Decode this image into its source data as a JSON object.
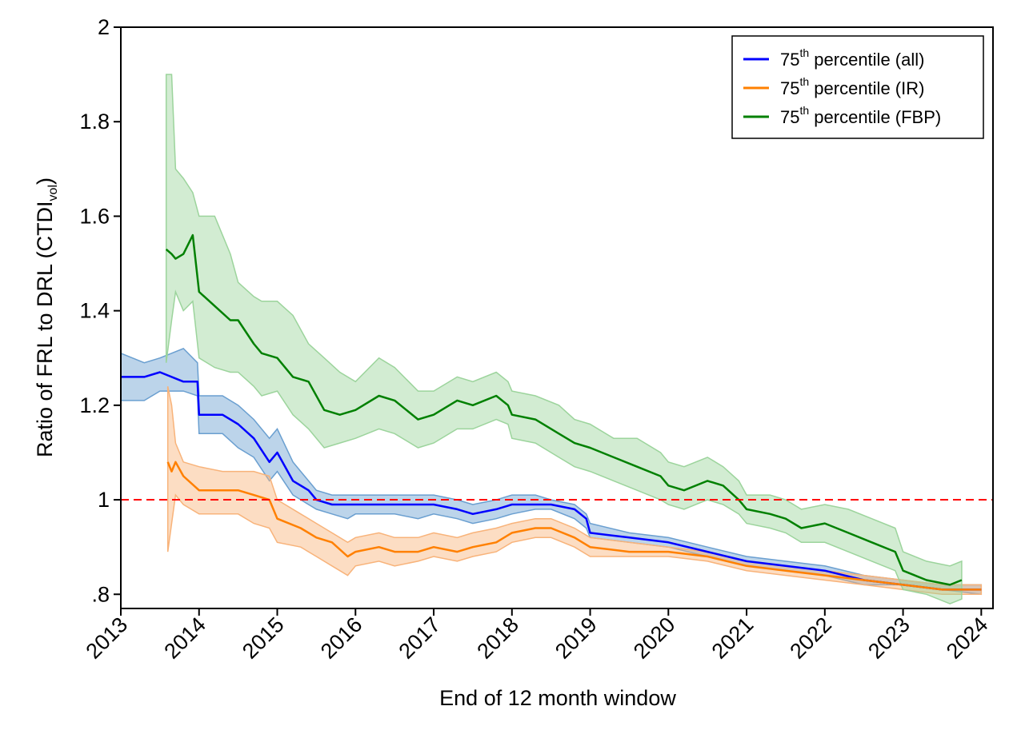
{
  "chart_data": {
    "type": "line",
    "title": "",
    "xlabel": "End of 12 month window",
    "ylabel": "Ratio of FRL to DRL (CTDI",
    "ylabel_sub": "vol",
    "ylabel_close": ")",
    "xlim": [
      2013,
      2024.15
    ],
    "ylim": [
      0.77,
      2.0
    ],
    "x_ticks": [
      2013,
      2014,
      2015,
      2016,
      2017,
      2018,
      2019,
      2020,
      2021,
      2022,
      2023,
      2024
    ],
    "x_tick_labels": [
      "2013",
      "2014",
      "2015",
      "2016",
      "2017",
      "2018",
      "2019",
      "2020",
      "2021",
      "2022",
      "2023",
      "2024"
    ],
    "y_ticks": [
      0.8,
      1.0,
      1.2,
      1.4,
      1.6,
      1.8,
      2.0
    ],
    "y_tick_labels": [
      ".8",
      "1",
      "1.2",
      "1.4",
      "1.6",
      "1.8",
      "2"
    ],
    "reference_line": {
      "y": 1.0,
      "color": "#ff0000",
      "style": "dashed"
    },
    "legend_position": "top-right",
    "legend_entries": [
      {
        "prefix": "75",
        "sup": "th",
        "suffix": " percentile (all)",
        "color": "#0000ff"
      },
      {
        "prefix": "75",
        "sup": "th",
        "suffix": " percentile (IR)",
        "color": "#ff8000"
      },
      {
        "prefix": "75",
        "sup": "th",
        "suffix": " percentile (FBP)",
        "color": "#008000"
      }
    ],
    "series": [
      {
        "name": "75th percentile (all)",
        "color": "#0000ff",
        "band_color": "#6a9fd0",
        "x": [
          2013.0,
          2013.3,
          2013.5,
          2013.8,
          2013.98,
          2014.0,
          2014.3,
          2014.5,
          2014.7,
          2014.9,
          2015.0,
          2015.2,
          2015.4,
          2015.5,
          2015.7,
          2015.9,
          2016.0,
          2016.3,
          2016.5,
          2016.8,
          2017.0,
          2017.3,
          2017.5,
          2017.8,
          2018.0,
          2018.3,
          2018.5,
          2018.8,
          2018.95,
          2019.0,
          2019.5,
          2020.0,
          2020.5,
          2021.0,
          2021.5,
          2022.0,
          2022.5,
          2023.0,
          2023.5,
          2024.0
        ],
        "values": [
          1.26,
          1.26,
          1.27,
          1.25,
          1.25,
          1.18,
          1.18,
          1.16,
          1.13,
          1.08,
          1.1,
          1.04,
          1.02,
          1.0,
          0.99,
          0.99,
          0.99,
          0.99,
          0.99,
          0.99,
          0.99,
          0.98,
          0.97,
          0.98,
          0.99,
          0.99,
          0.99,
          0.98,
          0.96,
          0.93,
          0.92,
          0.91,
          0.89,
          0.87,
          0.86,
          0.85,
          0.83,
          0.82,
          0.81,
          0.81
        ],
        "lower": [
          1.21,
          1.21,
          1.23,
          1.23,
          1.22,
          1.14,
          1.14,
          1.11,
          1.09,
          1.04,
          1.06,
          1.01,
          0.99,
          0.98,
          0.97,
          0.96,
          0.97,
          0.97,
          0.97,
          0.96,
          0.97,
          0.96,
          0.95,
          0.96,
          0.97,
          0.98,
          0.98,
          0.96,
          0.94,
          0.92,
          0.91,
          0.9,
          0.88,
          0.86,
          0.85,
          0.84,
          0.82,
          0.82,
          0.81,
          0.8
        ],
        "upper": [
          1.31,
          1.29,
          1.3,
          1.32,
          1.29,
          1.22,
          1.22,
          1.2,
          1.17,
          1.13,
          1.15,
          1.08,
          1.04,
          1.02,
          1.01,
          1.01,
          1.01,
          1.01,
          1.01,
          1.01,
          1.01,
          1.0,
          0.99,
          1.0,
          1.01,
          1.01,
          1.0,
          0.99,
          0.97,
          0.95,
          0.93,
          0.92,
          0.9,
          0.88,
          0.87,
          0.86,
          0.84,
          0.83,
          0.82,
          0.82
        ]
      },
      {
        "name": "75th percentile (IR)",
        "color": "#ff8000",
        "band_color": "#f8b37a",
        "x": [
          2013.6,
          2013.65,
          2013.7,
          2013.8,
          2014.0,
          2014.3,
          2014.5,
          2014.7,
          2014.9,
          2015.0,
          2015.3,
          2015.5,
          2015.7,
          2015.9,
          2016.0,
          2016.3,
          2016.5,
          2016.8,
          2017.0,
          2017.3,
          2017.5,
          2017.8,
          2018.0,
          2018.3,
          2018.5,
          2018.8,
          2019.0,
          2019.5,
          2020.0,
          2020.5,
          2021.0,
          2021.5,
          2022.0,
          2022.5,
          2023.0,
          2023.5,
          2024.0
        ],
        "values": [
          1.08,
          1.06,
          1.08,
          1.05,
          1.02,
          1.02,
          1.02,
          1.01,
          1.0,
          0.96,
          0.94,
          0.92,
          0.91,
          0.88,
          0.89,
          0.9,
          0.89,
          0.89,
          0.9,
          0.89,
          0.9,
          0.91,
          0.93,
          0.94,
          0.94,
          0.92,
          0.9,
          0.89,
          0.89,
          0.88,
          0.86,
          0.85,
          0.84,
          0.83,
          0.82,
          0.81,
          0.81
        ],
        "lower": [
          0.89,
          0.95,
          1.01,
          0.99,
          0.97,
          0.97,
          0.97,
          0.95,
          0.94,
          0.91,
          0.9,
          0.88,
          0.86,
          0.84,
          0.86,
          0.87,
          0.86,
          0.87,
          0.88,
          0.87,
          0.88,
          0.89,
          0.91,
          0.92,
          0.92,
          0.9,
          0.88,
          0.88,
          0.88,
          0.87,
          0.85,
          0.84,
          0.83,
          0.82,
          0.81,
          0.8,
          0.8
        ],
        "upper": [
          1.24,
          1.2,
          1.12,
          1.08,
          1.07,
          1.06,
          1.06,
          1.06,
          1.05,
          1.0,
          0.97,
          0.95,
          0.93,
          0.91,
          0.92,
          0.93,
          0.92,
          0.92,
          0.93,
          0.92,
          0.93,
          0.94,
          0.95,
          0.96,
          0.96,
          0.94,
          0.92,
          0.91,
          0.9,
          0.89,
          0.87,
          0.86,
          0.85,
          0.84,
          0.83,
          0.82,
          0.82
        ]
      },
      {
        "name": "75th percentile (FBP)",
        "color": "#008000",
        "band_color": "#9cd49c",
        "x": [
          2013.58,
          2013.65,
          2013.7,
          2013.8,
          2013.92,
          2014.0,
          2014.2,
          2014.4,
          2014.5,
          2014.7,
          2014.8,
          2015.0,
          2015.2,
          2015.4,
          2015.6,
          2015.8,
          2016.0,
          2016.3,
          2016.5,
          2016.8,
          2017.0,
          2017.3,
          2017.5,
          2017.8,
          2017.95,
          2018.0,
          2018.3,
          2018.6,
          2018.8,
          2019.0,
          2019.3,
          2019.6,
          2019.9,
          2020.0,
          2020.2,
          2020.5,
          2020.7,
          2020.9,
          2021.0,
          2021.3,
          2021.5,
          2021.7,
          2022.0,
          2022.3,
          2022.6,
          2022.9,
          2023.0,
          2023.3,
          2023.6,
          2023.75
        ],
        "values": [
          1.53,
          1.52,
          1.51,
          1.52,
          1.56,
          1.44,
          1.41,
          1.38,
          1.38,
          1.33,
          1.31,
          1.3,
          1.26,
          1.25,
          1.19,
          1.18,
          1.19,
          1.22,
          1.21,
          1.17,
          1.18,
          1.21,
          1.2,
          1.22,
          1.2,
          1.18,
          1.17,
          1.14,
          1.12,
          1.11,
          1.09,
          1.07,
          1.05,
          1.03,
          1.02,
          1.04,
          1.03,
          1.0,
          0.98,
          0.97,
          0.96,
          0.94,
          0.95,
          0.93,
          0.91,
          0.89,
          0.85,
          0.83,
          0.82,
          0.83
        ],
        "lower": [
          1.29,
          1.38,
          1.44,
          1.4,
          1.42,
          1.3,
          1.28,
          1.27,
          1.27,
          1.24,
          1.22,
          1.23,
          1.18,
          1.15,
          1.11,
          1.12,
          1.13,
          1.15,
          1.14,
          1.11,
          1.12,
          1.15,
          1.15,
          1.17,
          1.16,
          1.13,
          1.12,
          1.09,
          1.07,
          1.06,
          1.04,
          1.02,
          1.0,
          0.99,
          0.98,
          1.0,
          0.99,
          0.97,
          0.95,
          0.94,
          0.93,
          0.91,
          0.91,
          0.89,
          0.87,
          0.85,
          0.81,
          0.8,
          0.78,
          0.79
        ],
        "upper": [
          1.9,
          1.9,
          1.7,
          1.68,
          1.65,
          1.6,
          1.6,
          1.52,
          1.46,
          1.43,
          1.42,
          1.42,
          1.39,
          1.33,
          1.3,
          1.27,
          1.25,
          1.3,
          1.28,
          1.23,
          1.23,
          1.26,
          1.25,
          1.27,
          1.25,
          1.23,
          1.22,
          1.2,
          1.17,
          1.16,
          1.13,
          1.13,
          1.1,
          1.08,
          1.07,
          1.09,
          1.07,
          1.04,
          1.01,
          1.01,
          1.0,
          0.98,
          0.99,
          0.98,
          0.96,
          0.94,
          0.89,
          0.87,
          0.86,
          0.87
        ]
      }
    ]
  }
}
